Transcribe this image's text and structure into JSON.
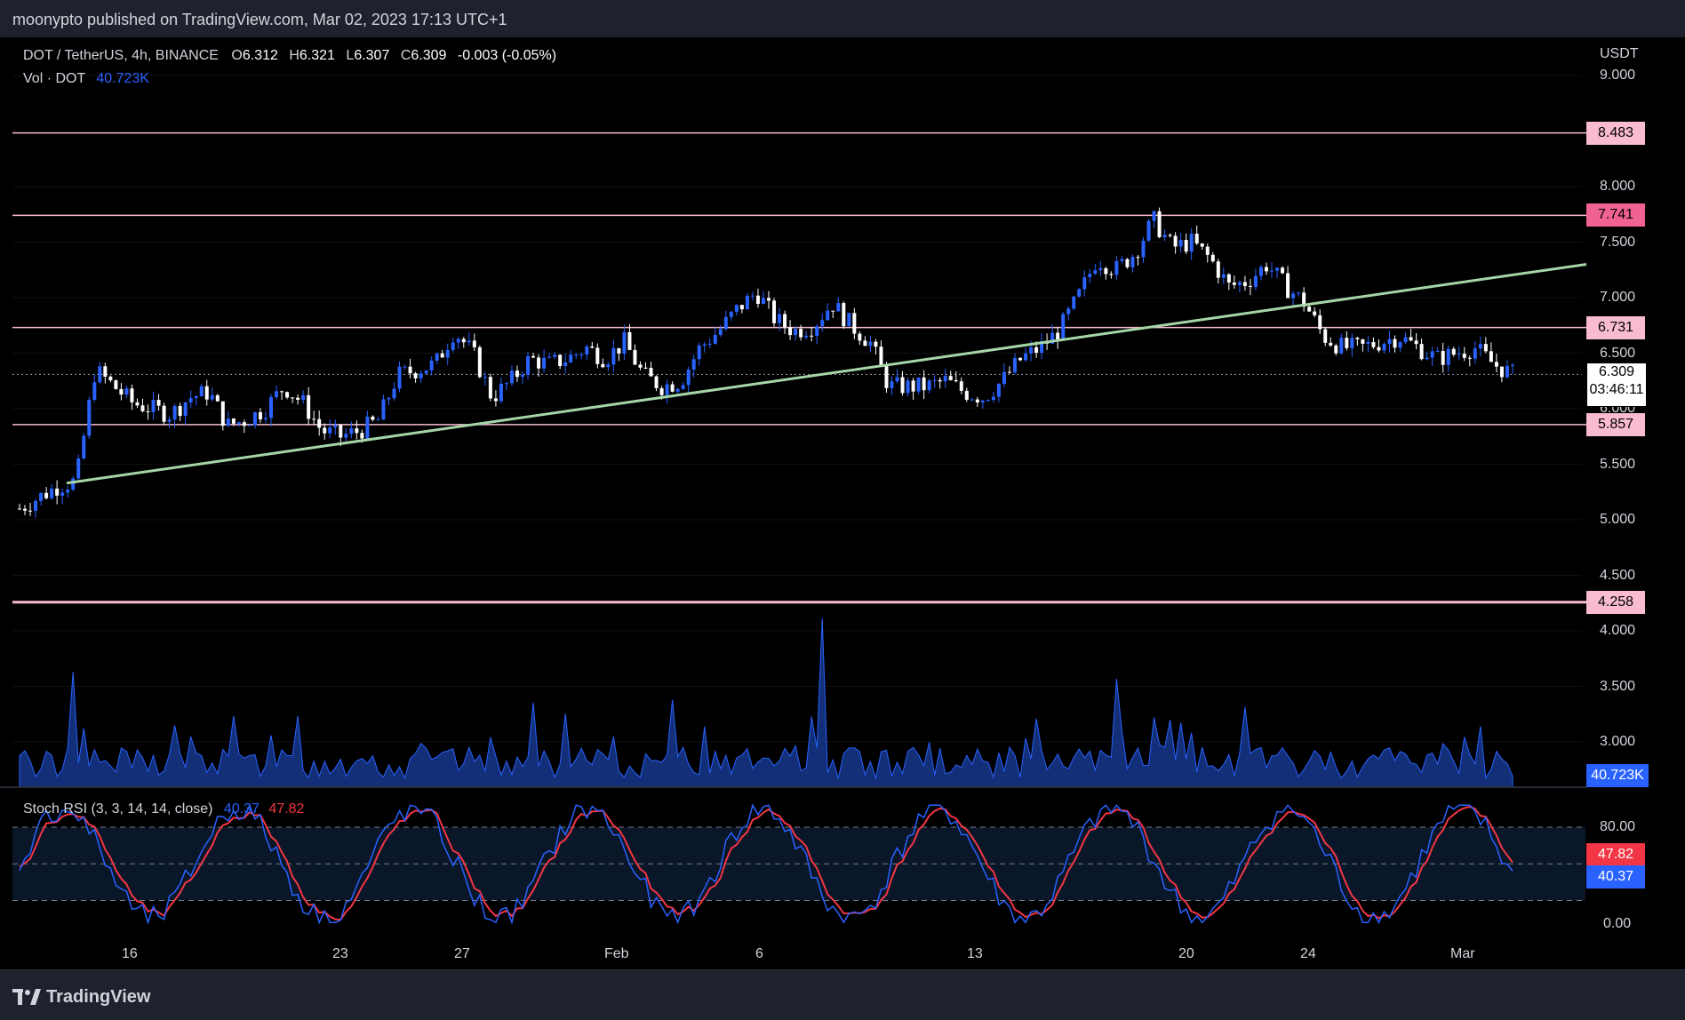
{
  "header": {
    "published_by": "moonypto published on TradingView.com, Mar 02, 2023 17:13 UTC+1"
  },
  "legend": {
    "symbol": "DOT / TetherUS, 4h, BINANCE",
    "o_label": "O",
    "o_value": "6.312",
    "h_label": "H",
    "h_value": "6.321",
    "l_label": "L",
    "l_value": "6.307",
    "c_label": "C",
    "c_value": "6.309",
    "change": "-0.003 (-0.05%)",
    "vol_label": "Vol · DOT",
    "vol_value": "40.723K"
  },
  "price_axis": {
    "currency": "USDT",
    "ticks": [
      "9.000",
      "8.000",
      "7.500",
      "7.000",
      "6.500",
      "6.000",
      "5.500",
      "5.000",
      "4.500",
      "4.000",
      "3.500",
      "3.000"
    ],
    "current_price": "6.309",
    "countdown": "03:46:11",
    "volume_tag": "40.723K"
  },
  "levels": [
    {
      "value": 8.483,
      "label": "8.483"
    },
    {
      "value": 7.741,
      "label": "7.741"
    },
    {
      "value": 6.731,
      "label": "6.731"
    },
    {
      "value": 5.857,
      "label": "5.857"
    },
    {
      "value": 4.258,
      "label": "4.258"
    }
  ],
  "stoch": {
    "title": "Stoch RSI (3, 3, 14, 14, close)",
    "k_value": "40.37",
    "d_value": "47.82",
    "ticks": [
      "80.00",
      "0.00"
    ],
    "k_tag": "40.37",
    "d_tag": "47.82"
  },
  "time_axis": {
    "labels": [
      "16",
      "23",
      "27",
      "Feb",
      "6",
      "13",
      "20",
      "24",
      "Mar"
    ]
  },
  "footer": {
    "brand": "TradingView"
  },
  "colors": {
    "bull": "#2962ff",
    "bear": "#ffffff",
    "trend": "#a5d6a7",
    "level": "#f8bbd0",
    "k_line": "#2962ff",
    "d_line": "#f23645",
    "volume": "#1e3a8a"
  },
  "chart_data": {
    "type": "candlestick",
    "title": "DOT / TetherUS, 4h, BINANCE",
    "ylabel": "USDT",
    "ylim": [
      2.9,
      9.1
    ],
    "x_labels": [
      "16",
      "23",
      "27",
      "Feb",
      "6",
      "13",
      "20",
      "24",
      "Mar"
    ],
    "close_path": [
      5.1,
      5.2,
      5.3,
      5.35,
      6.35,
      6.2,
      6.05,
      6.0,
      5.95,
      6.1,
      6.15,
      5.85,
      5.9,
      6.0,
      6.2,
      6.05,
      5.8,
      5.75,
      5.8,
      5.9,
      6.3,
      6.35,
      6.4,
      6.7,
      6.5,
      6.1,
      6.25,
      6.45,
      6.4,
      6.45,
      6.55,
      6.45,
      6.6,
      6.3,
      6.2,
      6.25,
      6.55,
      6.7,
      6.9,
      7.05,
      6.8,
      6.7,
      6.75,
      6.95,
      6.75,
      6.6,
      6.2,
      6.2,
      6.2,
      6.25,
      6.15,
      6.1,
      6.25,
      6.45,
      6.55,
      6.7,
      7.0,
      7.35,
      7.25,
      7.4,
      7.7,
      7.45,
      7.5,
      7.35,
      7.1,
      7.15,
      7.3,
      7.1,
      6.95,
      6.65,
      6.55,
      6.55,
      6.6,
      6.65,
      6.55,
      6.45,
      6.5,
      6.55,
      6.4,
      6.31
    ],
    "trend_line": {
      "from": [
        0,
        5.33
      ],
      "to": [
        1,
        7.3
      ]
    },
    "levels": [
      8.483,
      7.741,
      6.731,
      5.857,
      4.258
    ],
    "stoch_rsi": {
      "k": 40.37,
      "d": 47.82,
      "upper": 80,
      "lower": 20
    },
    "volume_last": "40.723K"
  }
}
